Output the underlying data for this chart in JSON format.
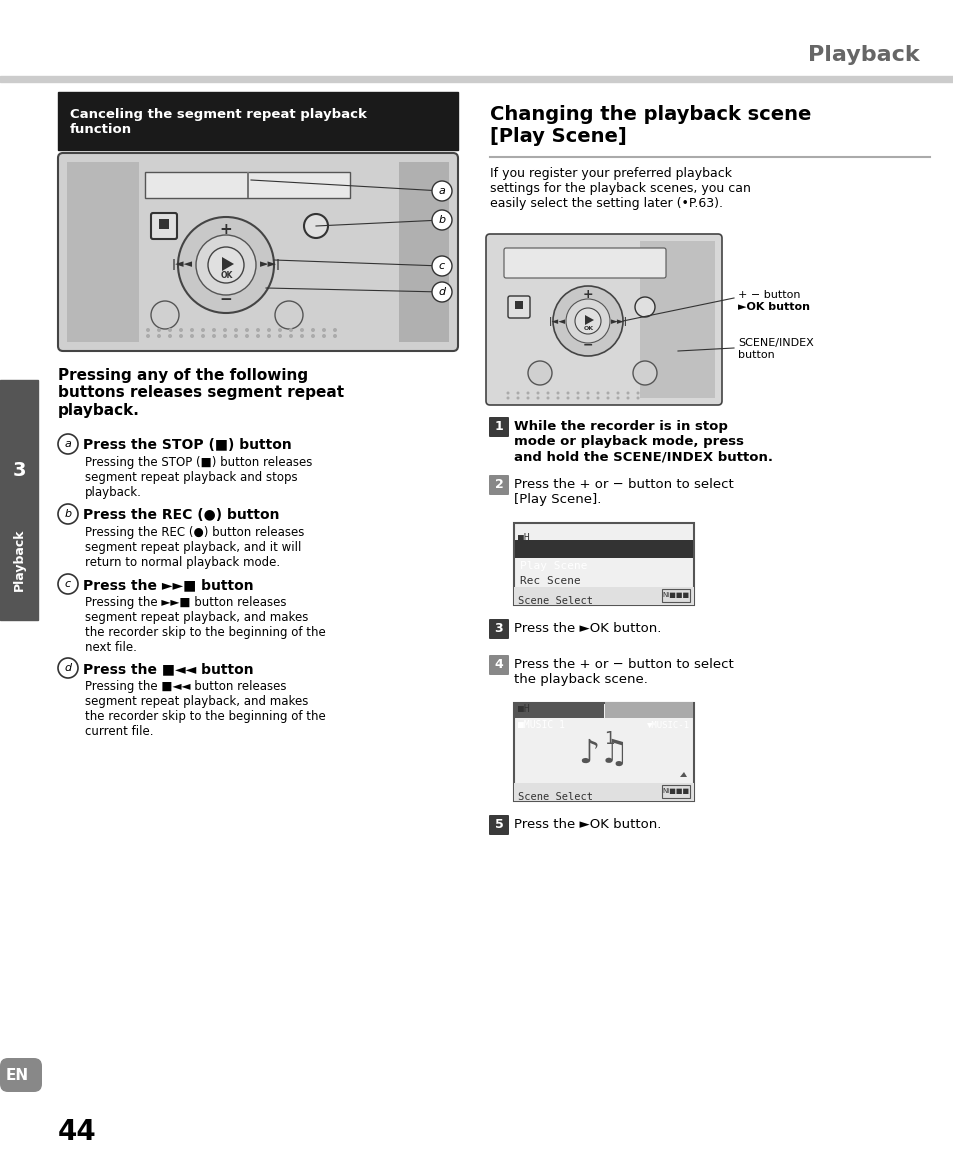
{
  "title": "Playback",
  "page_num": "44",
  "en_label": "EN",
  "section_label": "Playback",
  "left_box_title": "Canceling the segment repeat playback\nfunction",
  "main_bold_text": "Pressing any of the following\nbuttons releases segment repeat\nplayback.",
  "items_left": [
    {
      "label": "a",
      "heading": "Press the STOP (■) button",
      "body": "Pressing the STOP (■) button releases\nsegment repeat playback and stops\nplayback."
    },
    {
      "label": "b",
      "heading": "Press the REC (●) button",
      "body": "Pressing the REC (●) button releases\nsegment repeat playback, and it will\nreturn to normal playback mode."
    },
    {
      "label": "c",
      "heading": "Press the ►►■ button",
      "body": "Pressing the ►►■ button releases\nsegment repeat playback, and makes\nthe recorder skip to the beginning of the\nnext file."
    },
    {
      "label": "d",
      "heading": "Press the ■◄◄ button",
      "body": "Pressing the ■◄◄ button releases\nsegment repeat playback, and makes\nthe recorder skip to the beginning of the\ncurrent file."
    }
  ],
  "right_section_title": "Changing the playback scene\n[Play Scene]",
  "right_intro": "If you register your preferred playback\nsettings for the playback scenes, you can\neasily select the setting later (•P.63).",
  "right_label1": "+ − button",
  "right_label2": "►OK button",
  "right_label3": "SCENE/INDEX\nbutton",
  "steps": [
    {
      "num": "1",
      "text": "While the recorder is in stop\nmode or playback mode, press\nand hold the SCENE/INDEX button."
    },
    {
      "num": "2",
      "text": "Press the + or − button to select\n[Play Scene]."
    },
    {
      "num": "3",
      "text": "Press the ►OK button."
    },
    {
      "num": "4",
      "text": "Press the + or − button to select\nthe playback scene."
    },
    {
      "num": "5",
      "text": "Press the ►OK button."
    }
  ],
  "bg_color": "#ffffff",
  "header_bar_color": "#cccccc",
  "header_text_color": "#666666",
  "left_title_bg": "#1a1a1a",
  "left_title_fg": "#ffffff",
  "device_bg": "#d0d0d0",
  "section_line_color": "#aaaaaa",
  "step_num_bg_odd": "#3a3a3a",
  "step_num_bg_even": "#888888",
  "sidebar_bg": "#555555"
}
